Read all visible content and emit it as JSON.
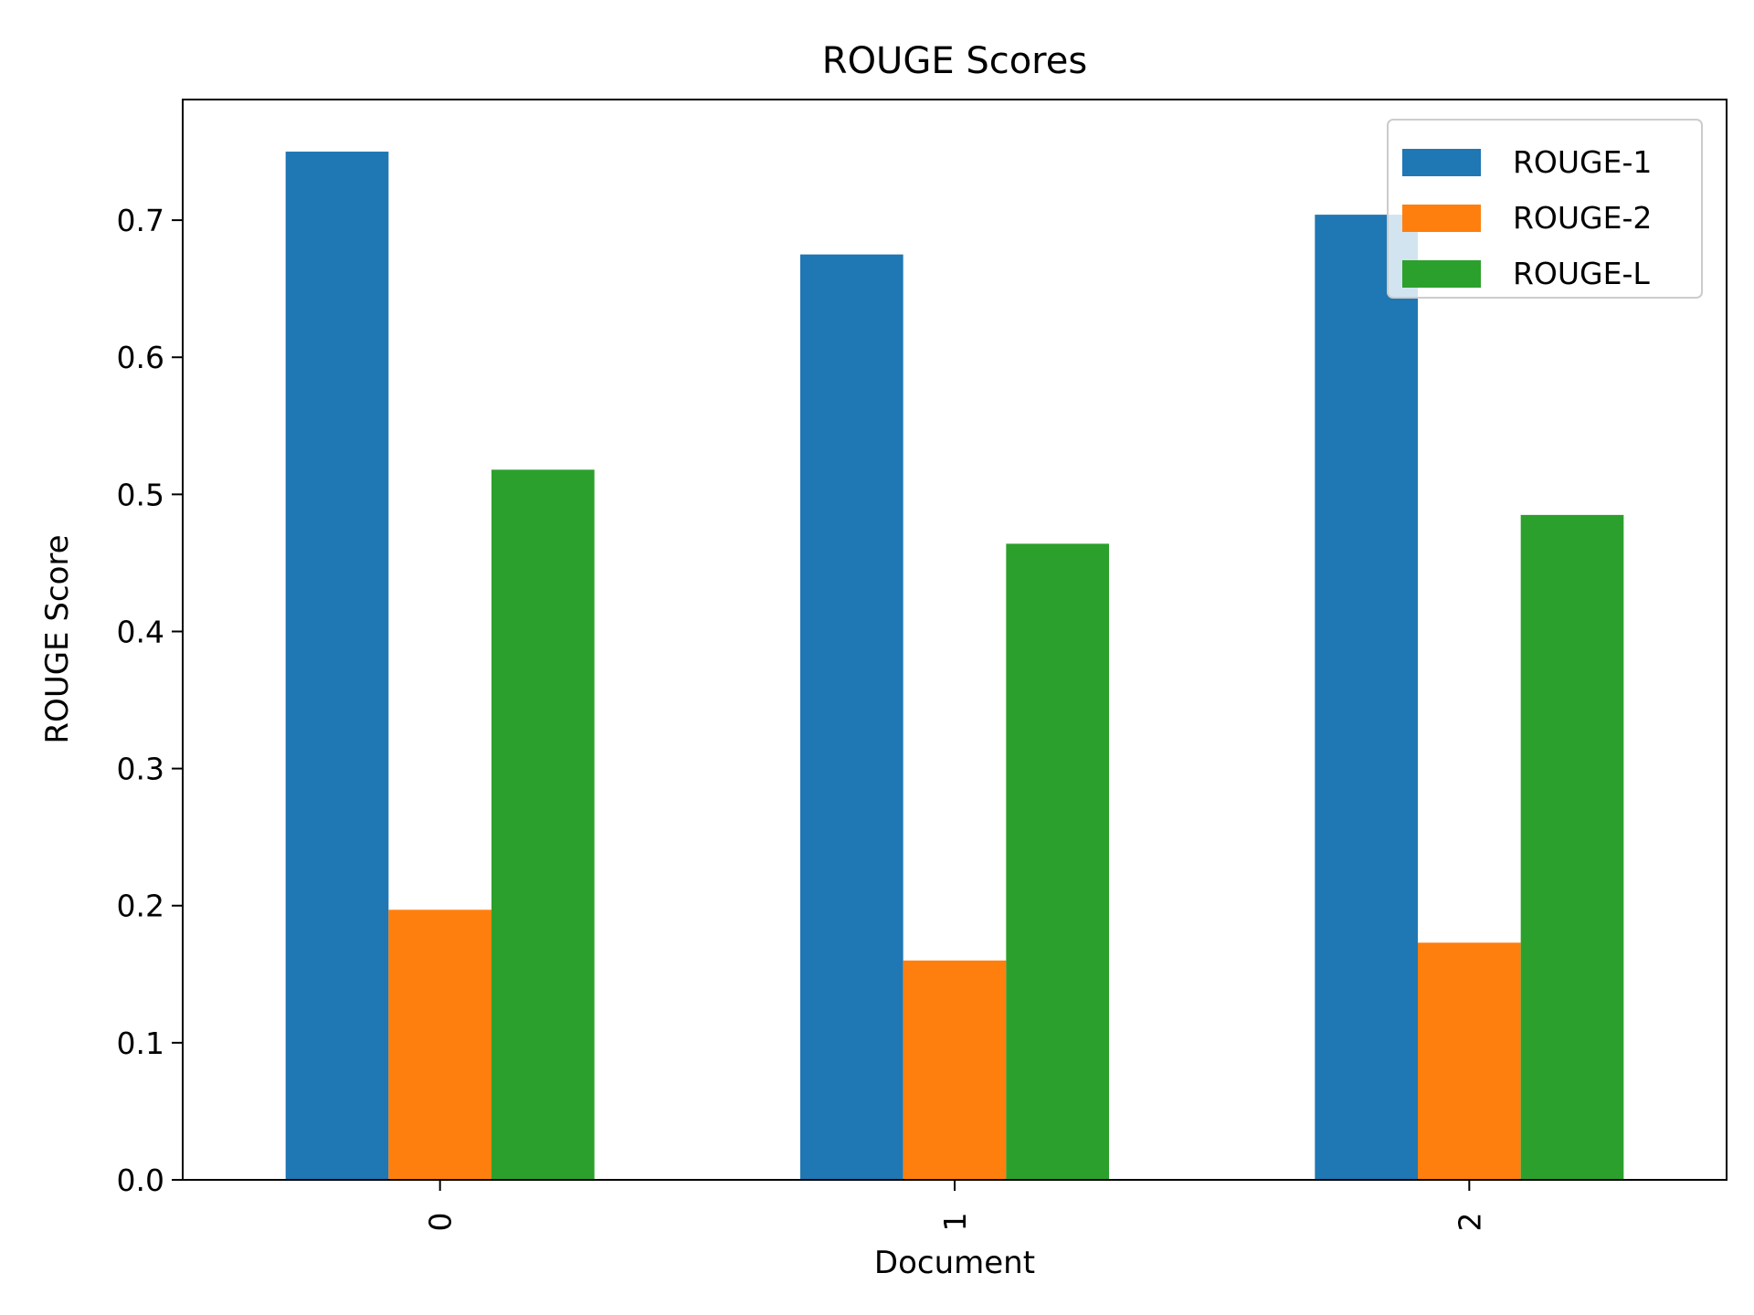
{
  "chart_data": {
    "type": "bar",
    "title": "ROUGE Scores",
    "xlabel": "Document",
    "ylabel": "ROUGE Score",
    "categories": [
      "0",
      "1",
      "2"
    ],
    "series": [
      {
        "name": "ROUGE-1",
        "color": "#1f77b4",
        "values": [
          0.75,
          0.675,
          0.704
        ]
      },
      {
        "name": "ROUGE-2",
        "color": "#ff7f0e",
        "values": [
          0.197,
          0.16,
          0.173
        ]
      },
      {
        "name": "ROUGE-L",
        "color": "#2ca02c",
        "values": [
          0.518,
          0.464,
          0.485
        ]
      }
    ],
    "ylim": [
      0,
      0.788
    ],
    "yticks": [
      "0.0",
      "0.1",
      "0.2",
      "0.3",
      "0.4",
      "0.5",
      "0.6",
      "0.7"
    ],
    "xtick_rotation": "vertical",
    "grid": false,
    "legend_position": "top-right"
  }
}
